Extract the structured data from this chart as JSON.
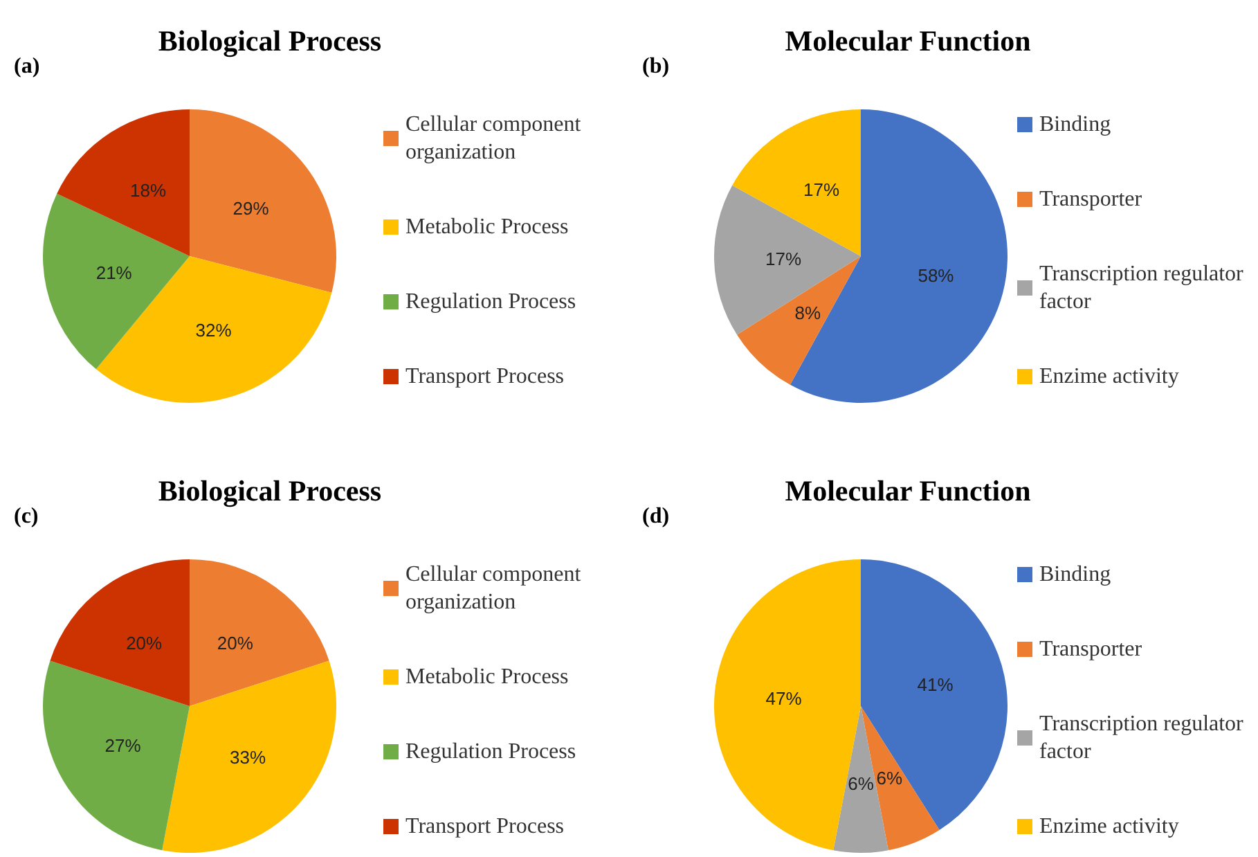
{
  "chart_data": [
    {
      "type": "pie",
      "title": "Biological Process",
      "annotations": [
        "(a)"
      ],
      "categories": [
        "Cellular component organization",
        "Metabolic Process",
        "Regulation Process",
        "Transport Process"
      ],
      "values": [
        29,
        32,
        21,
        18
      ],
      "value_labels": [
        "29%",
        "32%",
        "21%",
        "18%"
      ],
      "colors": [
        "#ed7d31",
        "#ffc000",
        "#70ad47",
        "#cc3300"
      ],
      "legend": "right"
    },
    {
      "type": "pie",
      "title": "Molecular Function",
      "annotations": [
        "(b)"
      ],
      "categories": [
        "Binding",
        "Transporter",
        "Transcription regulator factor",
        "Enzime activity"
      ],
      "values": [
        58,
        8,
        17,
        17
      ],
      "value_labels": [
        "58%",
        "8%",
        "17%",
        "17%"
      ],
      "colors": [
        "#4472c4",
        "#ed7d31",
        "#a5a5a5",
        "#ffc000"
      ],
      "legend": "right"
    },
    {
      "type": "pie",
      "title": "Biological Process",
      "annotations": [
        "(c)"
      ],
      "categories": [
        "Cellular component organization",
        "Metabolic Process",
        "Regulation Process",
        "Transport Process"
      ],
      "values": [
        20,
        33,
        27,
        20
      ],
      "value_labels": [
        "20%",
        "33%",
        "27%",
        "20%"
      ],
      "colors": [
        "#ed7d31",
        "#ffc000",
        "#70ad47",
        "#cc3300"
      ],
      "legend": "right"
    },
    {
      "type": "pie",
      "title": "Molecular Function",
      "annotations": [
        "(d)"
      ],
      "categories": [
        "Binding",
        "Transporter",
        "Transcription regulator factor",
        "Enzime activity"
      ],
      "values": [
        41,
        6,
        6,
        47
      ],
      "value_labels": [
        "41%",
        "6%",
        "6%",
        "47%"
      ],
      "colors": [
        "#4472c4",
        "#ed7d31",
        "#a5a5a5",
        "#ffc000"
      ],
      "legend": "right"
    }
  ]
}
